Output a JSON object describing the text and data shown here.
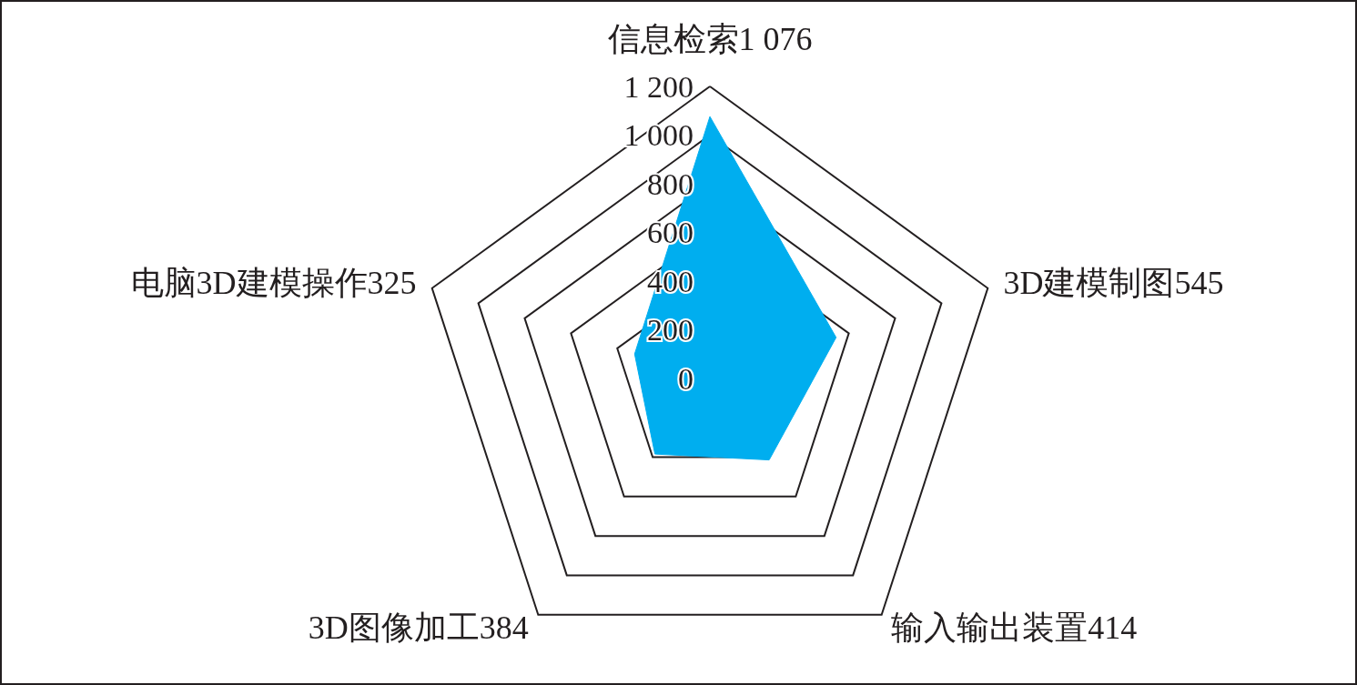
{
  "chart_data": {
    "type": "radar",
    "categories": [
      "信息检索1 076",
      "3D建模制图545",
      "输入输出装置414",
      "3D图像加工384",
      "电脑3D建模操作325"
    ],
    "series": [
      {
        "color": "#00aeef",
        "values": [
          1076,
          545,
          414,
          384,
          325
        ]
      }
    ],
    "ylim": [
      0,
      1200
    ],
    "yticks": [
      0,
      200,
      400,
      600,
      800,
      {
        "value": 1000,
        "label": "1 000"
      },
      {
        "value": 1200,
        "label": "1 200"
      }
    ],
    "grid": true,
    "marker": "none"
  }
}
